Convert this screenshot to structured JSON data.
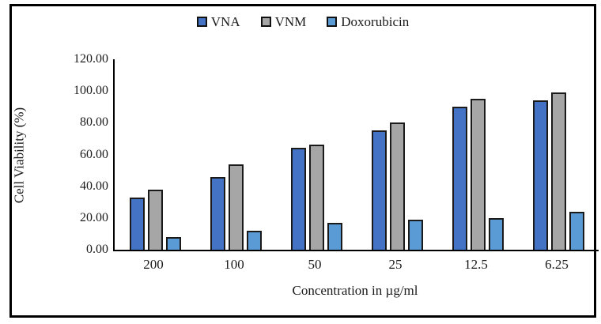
{
  "figure": {
    "background": "#ffffff",
    "frame_border_color": "#000000"
  },
  "chart_data": {
    "type": "bar",
    "title": "",
    "categories": [
      "200",
      "100",
      "50",
      "25",
      "12.5",
      "6.25"
    ],
    "series": [
      {
        "name": "VNA",
        "color": "#4472C4",
        "values": [
          33,
          46,
          64,
          75,
          90,
          94
        ]
      },
      {
        "name": "VNM",
        "color": "#A6A6A6",
        "values": [
          38,
          54,
          66,
          80,
          95,
          99
        ]
      },
      {
        "name": "Doxorubicin",
        "color": "#5B9BD5",
        "values": [
          8,
          12,
          17,
          19,
          20,
          24
        ]
      }
    ],
    "xlabel": "Concentration in µg/ml",
    "ylabel": "Cell Viability (%)",
    "ylim": [
      0,
      120
    ],
    "ytick_step": 20,
    "ytick_labels": [
      "0.00",
      "20.00",
      "40.00",
      "60.00",
      "80.00",
      "100.00",
      "120.00"
    ],
    "grid": false,
    "legend_position": "top-center",
    "bar_outline_color": "#1a1a1a"
  }
}
